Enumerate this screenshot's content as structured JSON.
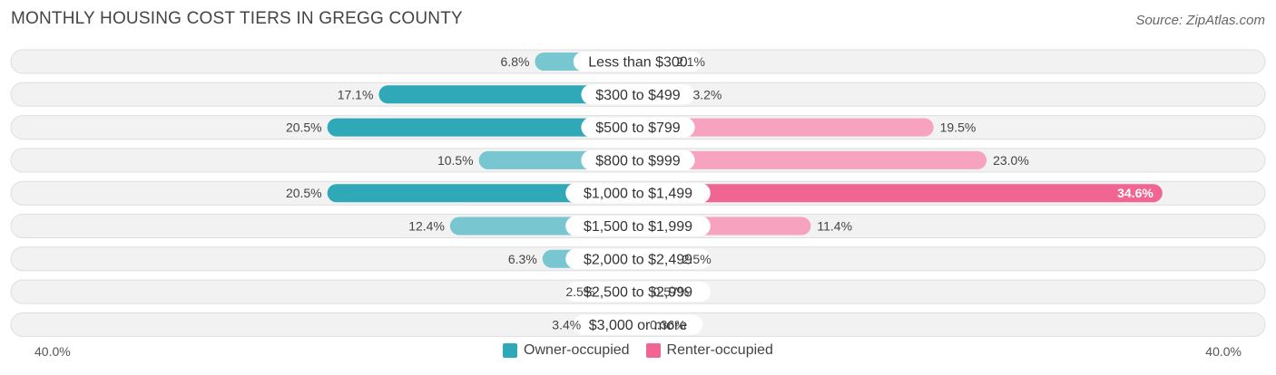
{
  "header": {
    "title": "MONTHLY HOUSING COST TIERS IN GREGG COUNTY",
    "source": "Source: ZipAtlas.com"
  },
  "colors": {
    "owner": "#2fa8b8",
    "owner_light": "#78c6d0",
    "renter": "#f06592",
    "renter_light": "#f7a3c0",
    "row_bg": "#f2f2f2",
    "row_border": "#dedede"
  },
  "chart_data": {
    "type": "bar",
    "orientation": "horizontal-diverging",
    "categories": [
      "Less than $300",
      "$300 to $499",
      "$500 to $799",
      "$800 to $999",
      "$1,000 to $1,499",
      "$1,500 to $1,999",
      "$2,000 to $2,499",
      "$2,500 to $2,999",
      "$3,000 or more"
    ],
    "series": [
      {
        "name": "Owner-occupied",
        "values": [
          6.8,
          17.1,
          20.5,
          10.5,
          20.5,
          12.4,
          6.3,
          2.5,
          3.4
        ],
        "labels": [
          "6.8%",
          "17.1%",
          "20.5%",
          "10.5%",
          "20.5%",
          "12.4%",
          "6.3%",
          "2.5%",
          "3.4%"
        ]
      },
      {
        "name": "Renter-occupied",
        "values": [
          2.1,
          3.2,
          19.5,
          23.0,
          34.6,
          11.4,
          2.5,
          0.57,
          0.36
        ],
        "labels": [
          "2.1%",
          "3.2%",
          "19.5%",
          "23.0%",
          "34.6%",
          "11.4%",
          "2.5%",
          "0.57%",
          "0.36%"
        ]
      }
    ],
    "axis": {
      "left_label": "40.0%",
      "right_label": "40.0%",
      "max": 40.0
    },
    "legend_position": "bottom-center"
  }
}
